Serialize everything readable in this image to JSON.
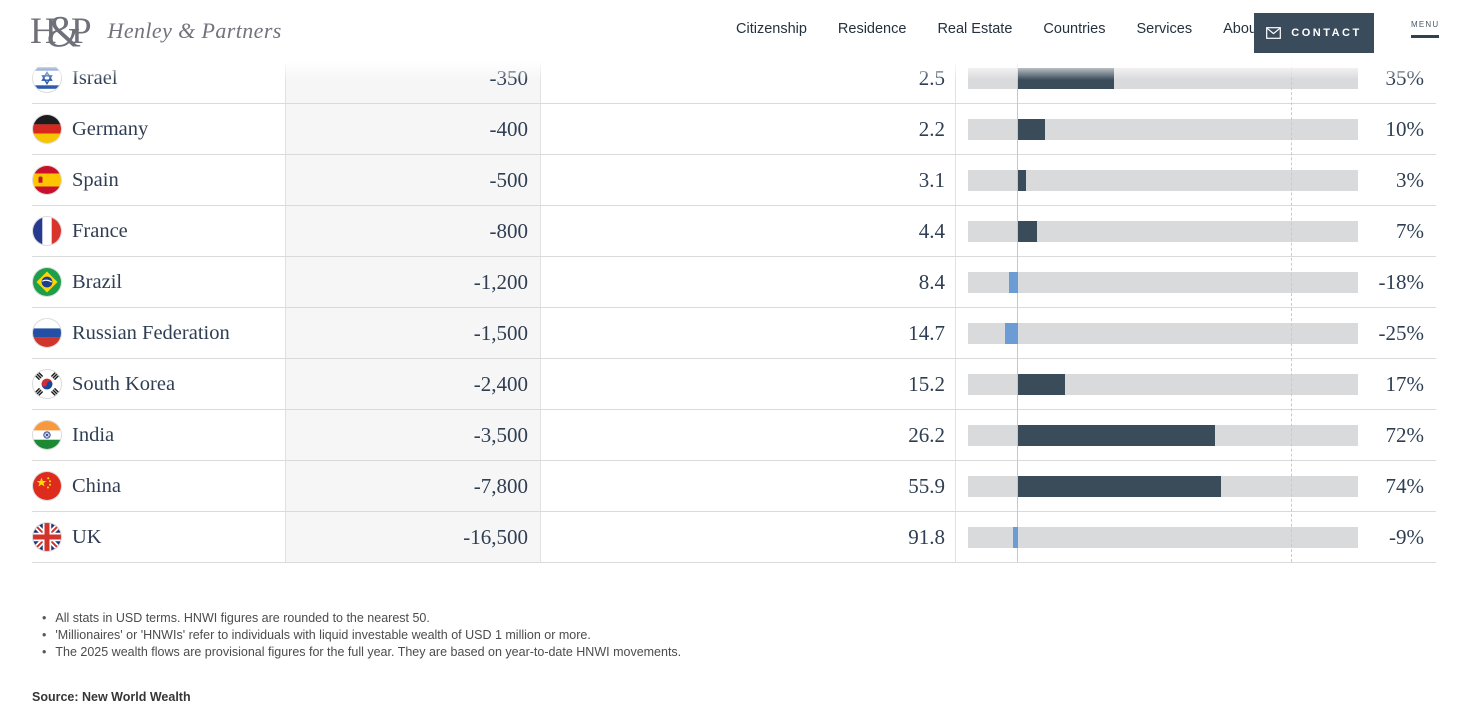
{
  "brand": {
    "monogram_h": "H",
    "monogram_amp": "&",
    "monogram_p": "P",
    "name": "Henley & Partners"
  },
  "nav": {
    "items": [
      "Citizenship",
      "Residence",
      "Real Estate",
      "Countries",
      "Services",
      "About"
    ],
    "contact_label": "CONTACT",
    "menu_label": "MENU"
  },
  "colors": {
    "bar_positive": "#3a4b5a",
    "bar_negative": "#6b9cd6",
    "track": "#d8dadb",
    "contact_bg": "#3a4c5b"
  },
  "chart_data": {
    "type": "bar",
    "note": "horizontal bars per table row; solid baseline = 0%, dashed gridline = 100%",
    "categories": [
      "Israel",
      "Germany",
      "Spain",
      "France",
      "Brazil",
      "Russian Federation",
      "South Korea",
      "India",
      "China",
      "UK"
    ],
    "values": [
      35,
      10,
      3,
      7,
      -18,
      -25,
      17,
      72,
      74,
      -9
    ]
  },
  "table": {
    "rows": [
      {
        "country": "Israel",
        "flag": "il",
        "outflow": "-350",
        "value": "2.5",
        "pct": 35,
        "pct_label": "35%"
      },
      {
        "country": "Germany",
        "flag": "de",
        "outflow": "-400",
        "value": "2.2",
        "pct": 10,
        "pct_label": "10%"
      },
      {
        "country": "Spain",
        "flag": "es",
        "outflow": "-500",
        "value": "3.1",
        "pct": 3,
        "pct_label": "3%"
      },
      {
        "country": "France",
        "flag": "fr",
        "outflow": "-800",
        "value": "4.4",
        "pct": 7,
        "pct_label": "7%"
      },
      {
        "country": "Brazil",
        "flag": "br",
        "outflow": "-1,200",
        "value": "8.4",
        "pct": -18,
        "pct_label": "-18%"
      },
      {
        "country": "Russian Federation",
        "flag": "ru",
        "outflow": "-1,500",
        "value": "14.7",
        "pct": -25,
        "pct_label": "-25%"
      },
      {
        "country": "South Korea",
        "flag": "kr",
        "outflow": "-2,400",
        "value": "15.2",
        "pct": 17,
        "pct_label": "17%"
      },
      {
        "country": "India",
        "flag": "in",
        "outflow": "-3,500",
        "value": "26.2",
        "pct": 72,
        "pct_label": "72%"
      },
      {
        "country": "China",
        "flag": "cn",
        "outflow": "-7,800",
        "value": "55.9",
        "pct": 74,
        "pct_label": "74%"
      },
      {
        "country": "UK",
        "flag": "uk",
        "outflow": "-16,500",
        "value": "91.8",
        "pct": -9,
        "pct_label": "-9%"
      }
    ]
  },
  "notes": {
    "bullets": [
      "All stats in USD terms. HNWI figures are rounded to the nearest 50.",
      "'Millionaires' or 'HNWIs' refer to individuals with liquid investable wealth of USD 1 million or more.",
      "The 2025 wealth flows are provisional figures for the full year. They are based on year-to-date HNWI movements."
    ],
    "source": "Source: New World Wealth"
  }
}
